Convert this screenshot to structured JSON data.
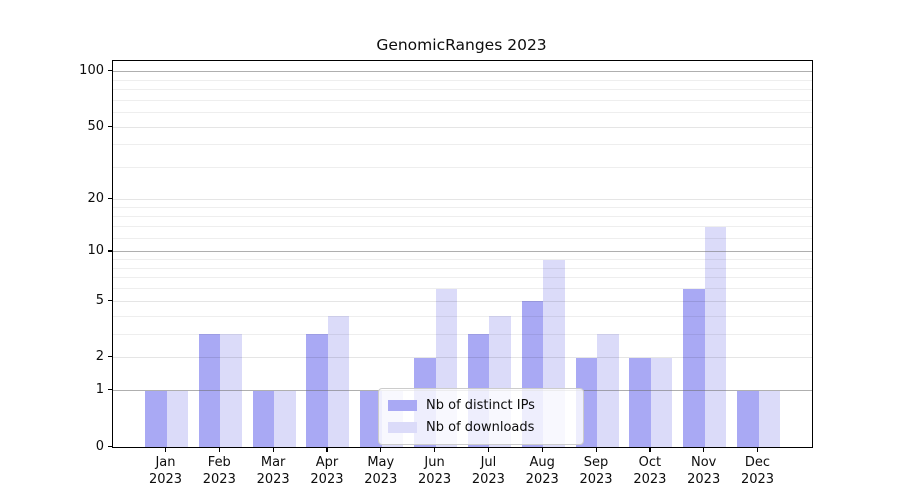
{
  "chart_data": {
    "type": "bar",
    "title": "GenomicRanges 2023",
    "xlabel": "",
    "ylabel": "",
    "year": "2023",
    "categories": [
      "Jan 2023",
      "Feb 2023",
      "Mar 2023",
      "Apr 2023",
      "May 2023",
      "Jun 2023",
      "Jul 2023",
      "Aug 2023",
      "Sep 2023",
      "Oct 2023",
      "Nov 2023",
      "Dec 2023"
    ],
    "months": [
      "Jan",
      "Feb",
      "Mar",
      "Apr",
      "May",
      "Jun",
      "Jul",
      "Aug",
      "Sep",
      "Oct",
      "Nov",
      "Dec"
    ],
    "series": [
      {
        "name": "Nb of distinct IPs",
        "color": "#a9a9f4",
        "values": [
          1,
          3,
          1,
          3,
          1,
          2,
          3,
          5,
          2,
          2,
          6,
          1
        ]
      },
      {
        "name": "Nb of downloads",
        "color": "#dbdbf9",
        "values": [
          1,
          3,
          1,
          4,
          1,
          6,
          4,
          9,
          3,
          2,
          14,
          1
        ]
      }
    ],
    "yscale": "log1p",
    "ylim": [
      0,
      115
    ],
    "y_major_ticks": [
      0,
      1,
      2,
      5,
      10,
      20,
      50,
      100
    ],
    "y_decade_gridlines": [
      1,
      10,
      100
    ],
    "y_minor_gridlines": [
      3,
      4,
      6,
      7,
      8,
      9,
      12,
      14,
      16,
      18,
      30,
      40,
      60,
      70,
      80,
      90
    ],
    "grid": "on",
    "legend_position": "lower center"
  }
}
